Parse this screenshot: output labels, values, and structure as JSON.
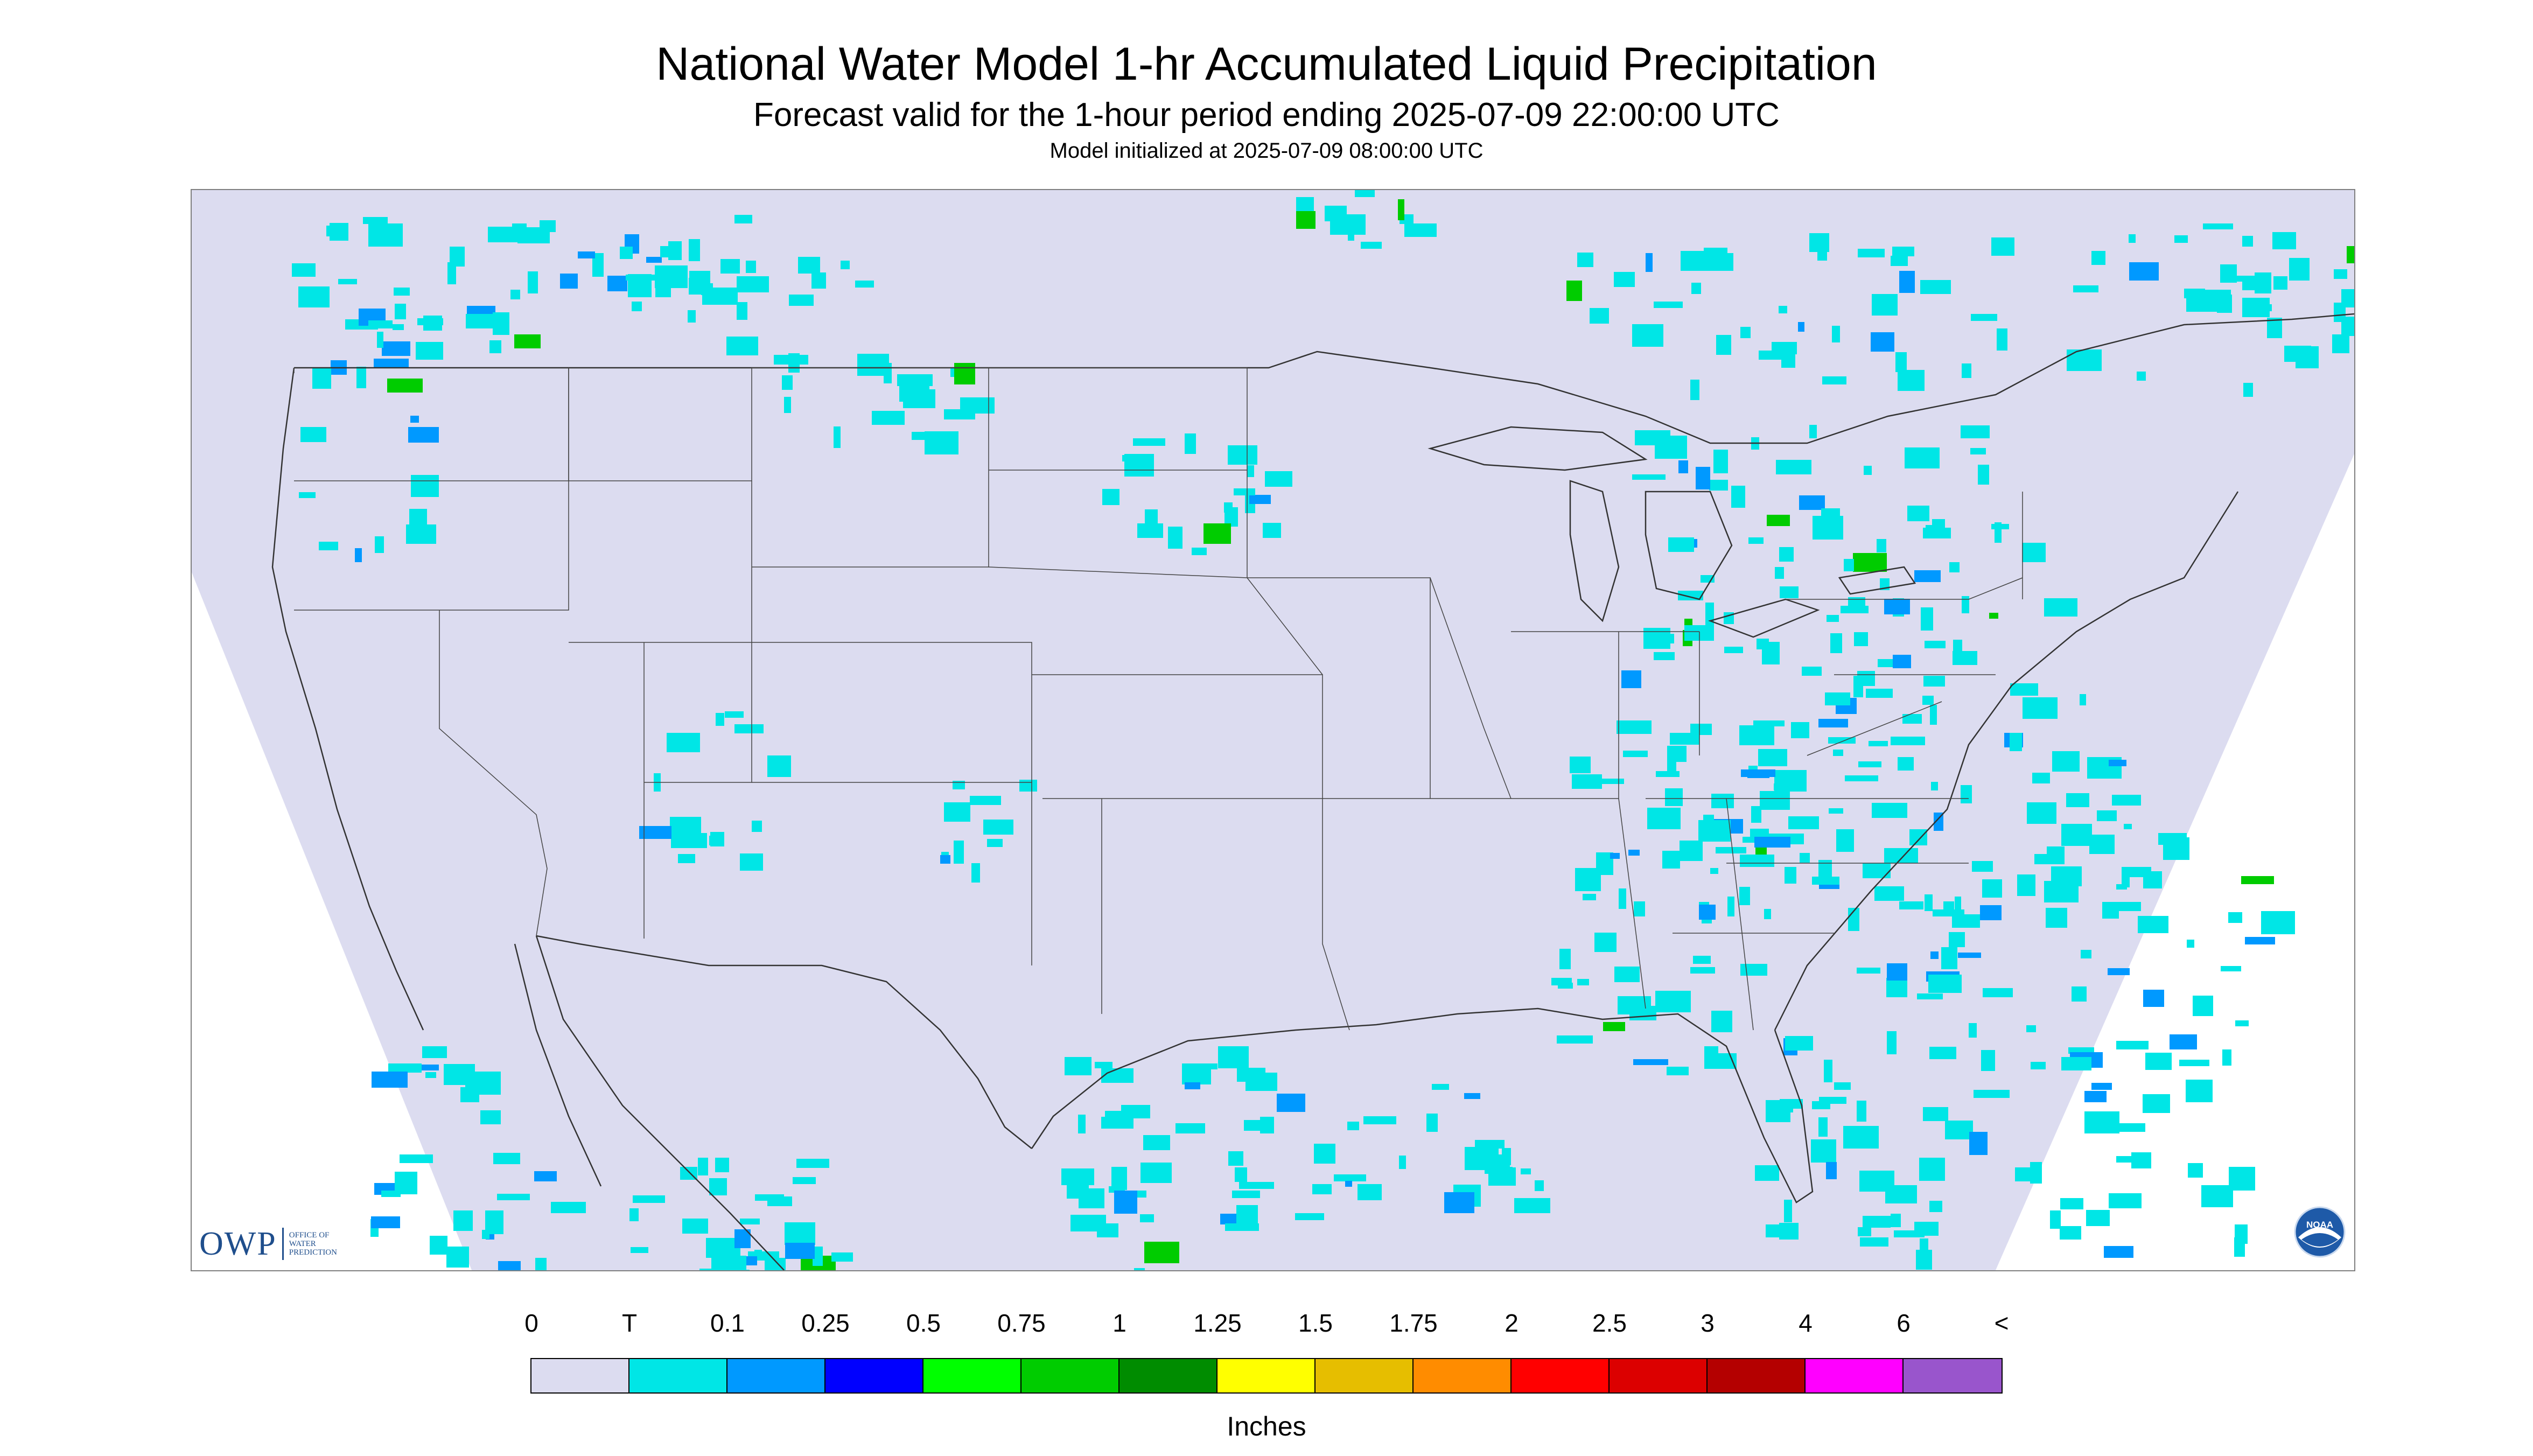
{
  "title": "National Water Model 1-hr Accumulated Liquid Precipitation",
  "subtitle": "Forecast valid for the 1-hour period ending 2025-07-09 22:00:00 UTC",
  "init_line": "Model initialized at 2025-07-09 08:00:00 UTC",
  "logos": {
    "owp_mark": "OWP",
    "owp_text": [
      "OFFICE OF",
      "WATER",
      "PREDICTION"
    ],
    "noaa_text": "NOAA"
  },
  "colors": {
    "domain_fill": "#dcdcf0",
    "outside_fill": "#ffffff",
    "boundary_line": "#333333"
  },
  "legend": {
    "units": "Inches",
    "labels": [
      "0",
      "T",
      "0.1",
      "0.25",
      "0.5",
      "0.75",
      "1",
      "1.25",
      "1.5",
      "1.75",
      "2",
      "2.5",
      "3",
      "4",
      "6",
      "<"
    ],
    "colors": [
      "#dcdcf0",
      "#00e6e6",
      "#0099ff",
      "#0000ff",
      "#00ff00",
      "#00cc00",
      "#008c00",
      "#ffff00",
      "#e6be00",
      "#ff8c00",
      "#ff0000",
      "#dc0000",
      "#b40000",
      "#ff00ff",
      "#9955cc"
    ]
  }
}
